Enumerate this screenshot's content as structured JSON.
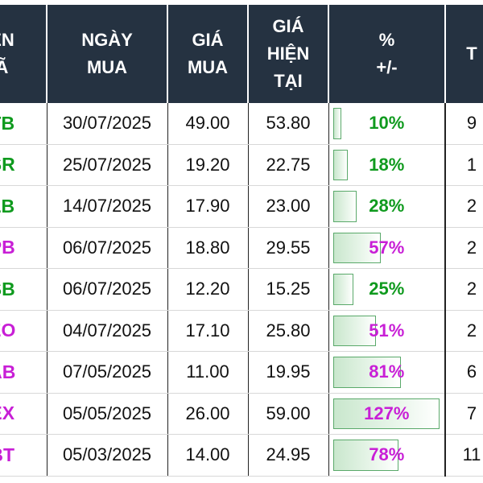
{
  "headers": {
    "ticker": "ÊN\nÃ",
    "buy_date": "NGÀY\nMUA",
    "buy_price": "GIÁ\nMUA",
    "current_price": "GIÁ\nHIỆN\nTẠI",
    "pct_change": "%\n+/-",
    "last": "T"
  },
  "colors": {
    "header_bg": "#253241",
    "green": "#0f9a1e",
    "purple": "#c81fd6",
    "bar_border": "#5aa96a"
  },
  "rows": [
    {
      "ticker": "TB",
      "buy_date": "30/07/2025",
      "buy_price": "49.00",
      "current_price": "53.80",
      "pct": "10%",
      "pct_value": 10,
      "last": "9",
      "color": "green"
    },
    {
      "ticker": "SR",
      "buy_date": "25/07/2025",
      "buy_price": "19.20",
      "current_price": "22.75",
      "pct": "18%",
      "pct_value": 18,
      "last": "1",
      "color": "green"
    },
    {
      "ticker": "LB",
      "buy_date": "14/07/2025",
      "buy_price": "17.90",
      "current_price": "23.00",
      "pct": "28%",
      "pct_value": 28,
      "last": "2",
      "color": "green"
    },
    {
      "ticker": "PB",
      "buy_date": "06/07/2025",
      "buy_price": "18.80",
      "current_price": "29.55",
      "pct": "57%",
      "pct_value": 57,
      "last": "2",
      "color": "purple"
    },
    {
      "ticker": "SB",
      "buy_date": "06/07/2025",
      "buy_price": "12.20",
      "current_price": "15.25",
      "pct": "25%",
      "pct_value": 25,
      "last": "2",
      "color": "green"
    },
    {
      "ticker": "EO",
      "buy_date": "04/07/2025",
      "buy_price": "17.10",
      "current_price": "25.80",
      "pct": "51%",
      "pct_value": 51,
      "last": "2",
      "color": "purple"
    },
    {
      "ticker": "AB",
      "buy_date": "07/05/2025",
      "buy_price": "11.00",
      "current_price": "19.95",
      "pct": "81%",
      "pct_value": 81,
      "last": "6",
      "color": "purple"
    },
    {
      "ticker": "EX",
      "buy_date": "05/05/2025",
      "buy_price": "26.00",
      "current_price": "59.00",
      "pct": "127%",
      "pct_value": 127,
      "last": "7",
      "color": "purple"
    },
    {
      "ticker": "BT",
      "buy_date": "05/03/2025",
      "buy_price": "14.00",
      "current_price": "24.95",
      "pct": "78%",
      "pct_value": 78,
      "last": "11",
      "color": "purple"
    }
  ]
}
